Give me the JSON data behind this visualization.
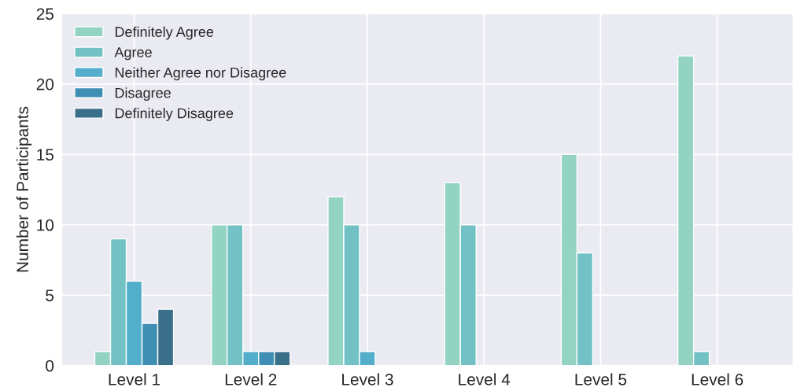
{
  "chart_data": {
    "type": "bar",
    "ylabel": "Number of Participants",
    "categories": [
      "Level 1",
      "Level 2",
      "Level 3",
      "Level 4",
      "Level 5",
      "Level 6"
    ],
    "series": [
      {
        "name": "Definitely Agree",
        "color": "#93d3c1",
        "values": [
          1,
          10,
          12,
          13,
          15,
          22
        ]
      },
      {
        "name": "Agree",
        "color": "#72c1c5",
        "values": [
          9,
          10,
          10,
          10,
          8,
          1
        ]
      },
      {
        "name": "Neither Agree nor Disagree",
        "color": "#52aecb",
        "values": [
          6,
          1,
          1,
          0,
          0,
          0
        ]
      },
      {
        "name": "Disagree",
        "color": "#3f8fb4",
        "values": [
          3,
          1,
          0,
          0,
          0,
          0
        ]
      },
      {
        "name": "Definitely Disagree",
        "color": "#3a6f89",
        "values": [
          4,
          1,
          0,
          0,
          0,
          0
        ]
      }
    ],
    "ylim": [
      0,
      25
    ],
    "yticks": [
      0,
      5,
      10,
      15,
      20,
      25
    ],
    "grid": true,
    "legend": "top left"
  }
}
